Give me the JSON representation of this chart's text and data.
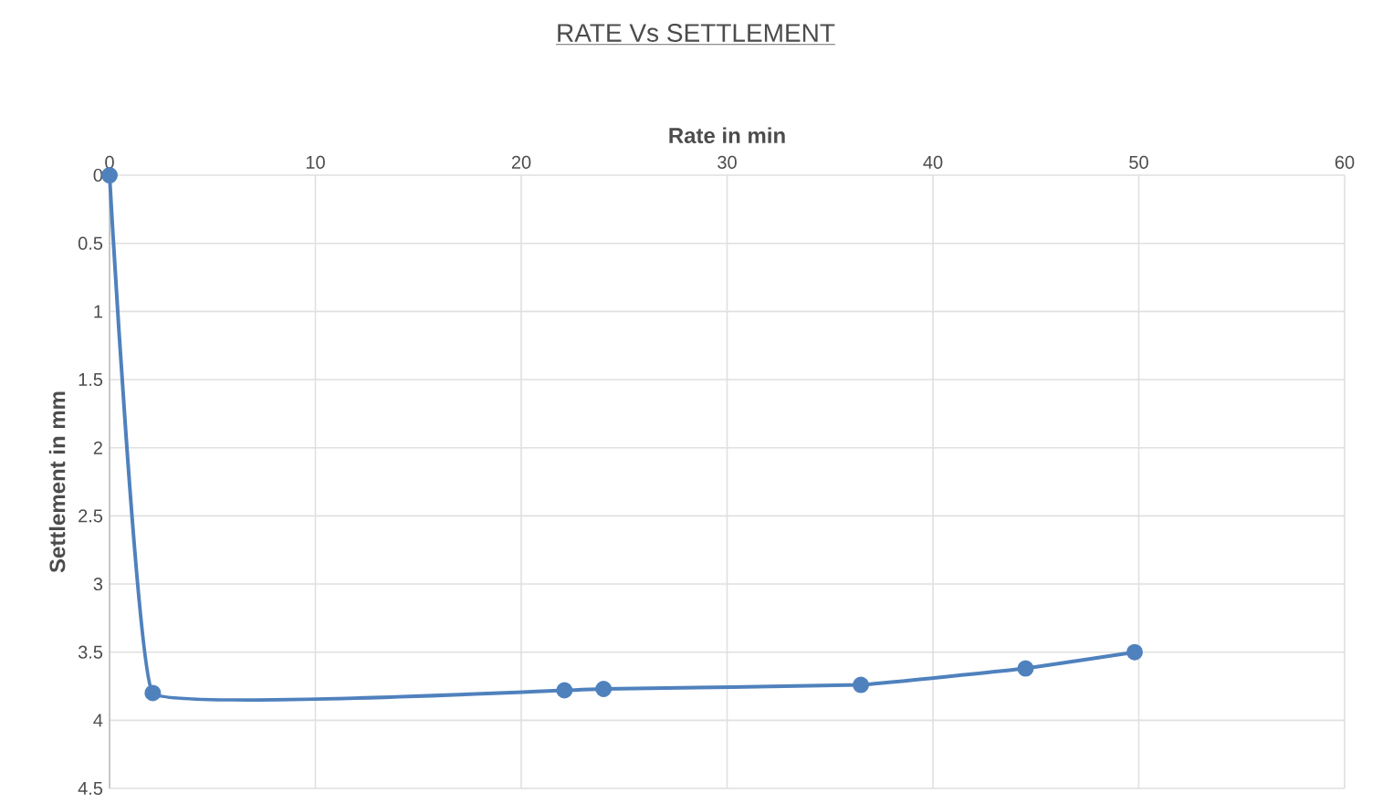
{
  "chart_data": {
    "type": "line",
    "title": "RATE Vs SETTLEMENT",
    "xlabel": "Rate in min",
    "ylabel": "Settlement in mm",
    "x": [
      0,
      2.1,
      22.1,
      24,
      36.5,
      44.5,
      49.8
    ],
    "series": [
      {
        "color": "#4f81bd",
        "values": [
          0,
          3.8,
          3.78,
          3.77,
          3.74,
          3.62,
          3.5
        ]
      }
    ],
    "xlim": [
      0,
      60
    ],
    "xticks": [
      0,
      10,
      20,
      30,
      40,
      50,
      60
    ],
    "ylim": [
      4.5,
      0
    ],
    "yticks": [
      0,
      0.5,
      1,
      1.5,
      2,
      2.5,
      3,
      3.5,
      4,
      4.5
    ],
    "grid": true,
    "marker": "circle",
    "line_style": "solid"
  }
}
